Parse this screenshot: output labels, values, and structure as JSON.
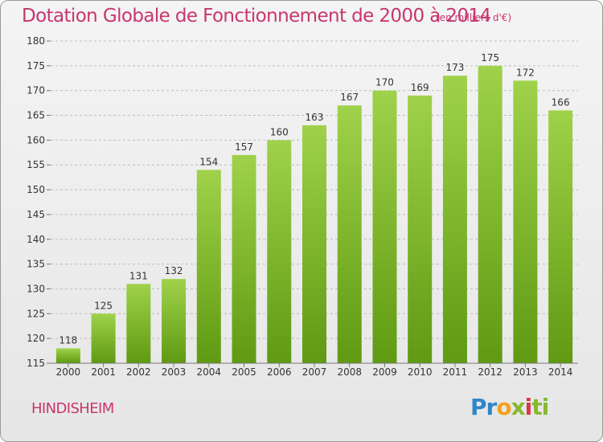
{
  "header": {
    "title": "Dotation Globale de Fonctionnement de 2000 à 2014",
    "unit": "(en milliers d'€)"
  },
  "footer": {
    "commune": "HINDISHEIM",
    "logo_parts": [
      "Pr",
      "o",
      "x",
      "i",
      "ti"
    ]
  },
  "colors": {
    "title": "#c8366e",
    "bar_top": "#9fd24a",
    "bar_bottom": "#5f9a12",
    "grid": "#bcbcbc",
    "axis_text": "#333333"
  },
  "chart_data": {
    "type": "bar",
    "categories": [
      "2000",
      "2001",
      "2002",
      "2003",
      "2004",
      "2005",
      "2006",
      "2007",
      "2008",
      "2009",
      "2010",
      "2011",
      "2012",
      "2013",
      "2014"
    ],
    "values": [
      118,
      125,
      131,
      132,
      154,
      157,
      160,
      163,
      167,
      170,
      169,
      173,
      175,
      172,
      166
    ],
    "ylim": [
      115,
      180
    ],
    "yticks": [
      115,
      120,
      125,
      130,
      135,
      140,
      145,
      150,
      155,
      160,
      165,
      170,
      175,
      180
    ],
    "grid": true,
    "data_labels": true
  }
}
